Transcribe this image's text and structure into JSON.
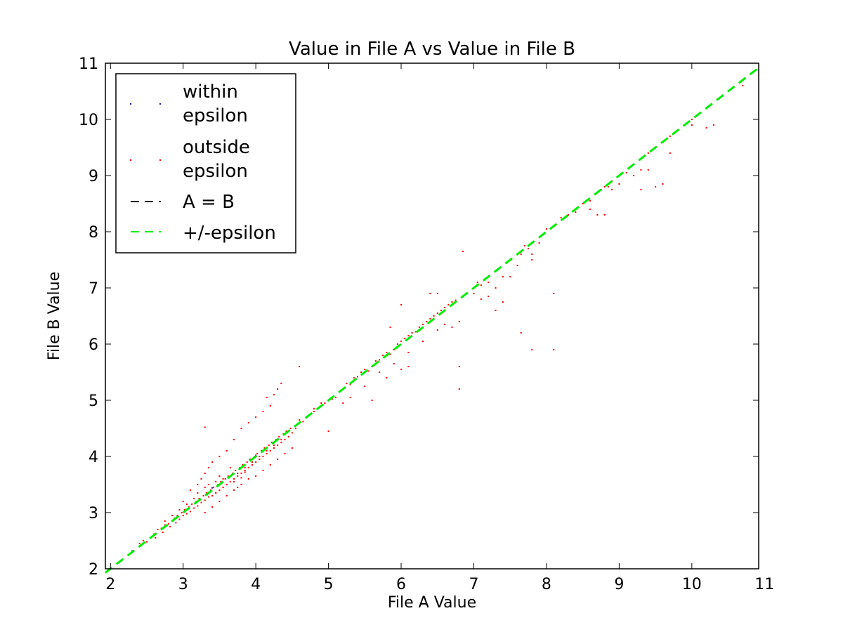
{
  "chart_data": {
    "type": "scatter",
    "title": "Value in File A vs Value in File B",
    "xlabel": "File A Value",
    "ylabel": "File B Value",
    "xlim": [
      1.93,
      10.92
    ],
    "ylim": [
      2,
      11
    ],
    "xticks": [
      2,
      3,
      4,
      5,
      6,
      7,
      8,
      9,
      10,
      11
    ],
    "yticks": [
      2,
      3,
      4,
      5,
      6,
      7,
      8,
      9,
      10,
      11
    ],
    "grid": false,
    "legend_position": "top-left",
    "series": [
      {
        "name": "within epsilon",
        "color": "#1a1aa8",
        "marker": "point",
        "points": [
          [
            2.3,
            2.32
          ],
          [
            3.4,
            3.44
          ],
          [
            4.0,
            4.02
          ]
        ]
      },
      {
        "name": "outside epsilon",
        "color": "#ff0000",
        "marker": "point",
        "points": [
          [
            2.4,
            2.45
          ],
          [
            2.45,
            2.5
          ],
          [
            2.5,
            2.48
          ],
          [
            2.55,
            2.55
          ],
          [
            2.6,
            2.62
          ],
          [
            2.62,
            2.55
          ],
          [
            2.65,
            2.7
          ],
          [
            2.7,
            2.72
          ],
          [
            2.72,
            2.65
          ],
          [
            2.75,
            2.78
          ],
          [
            2.8,
            2.8
          ],
          [
            2.82,
            2.75
          ],
          [
            2.85,
            2.85
          ],
          [
            2.88,
            2.9
          ],
          [
            2.9,
            2.82
          ],
          [
            2.92,
            2.95
          ],
          [
            2.95,
            2.88
          ],
          [
            2.98,
            3.0
          ],
          [
            3.0,
            2.95
          ],
          [
            3.02,
            3.05
          ],
          [
            3.05,
            2.98
          ],
          [
            3.08,
            3.1
          ],
          [
            3.1,
            3.02
          ],
          [
            3.12,
            3.15
          ],
          [
            3.15,
            3.08
          ],
          [
            3.18,
            3.2
          ],
          [
            3.2,
            3.12
          ],
          [
            3.22,
            3.25
          ],
          [
            3.25,
            3.18
          ],
          [
            3.28,
            3.3
          ],
          [
            3.3,
            3.22
          ],
          [
            3.32,
            3.35
          ],
          [
            3.35,
            3.28
          ],
          [
            3.38,
            3.4
          ],
          [
            3.4,
            3.3
          ],
          [
            3.42,
            3.45
          ],
          [
            3.45,
            3.35
          ],
          [
            3.48,
            3.5
          ],
          [
            3.5,
            3.4
          ],
          [
            3.52,
            3.55
          ],
          [
            3.55,
            3.45
          ],
          [
            3.58,
            3.6
          ],
          [
            3.6,
            3.5
          ],
          [
            3.62,
            3.65
          ],
          [
            3.65,
            3.55
          ],
          [
            3.68,
            3.7
          ],
          [
            3.7,
            3.6
          ],
          [
            3.72,
            3.75
          ],
          [
            3.75,
            3.65
          ],
          [
            3.78,
            3.8
          ],
          [
            3.8,
            3.7
          ],
          [
            3.82,
            3.85
          ],
          [
            3.85,
            3.75
          ],
          [
            3.88,
            3.9
          ],
          [
            3.9,
            3.8
          ],
          [
            3.92,
            3.95
          ],
          [
            3.95,
            3.85
          ],
          [
            3.98,
            4.0
          ],
          [
            4.0,
            3.9
          ],
          [
            4.02,
            4.05
          ],
          [
            4.05,
            3.95
          ],
          [
            4.08,
            4.1
          ],
          [
            4.1,
            4.0
          ],
          [
            4.12,
            4.15
          ],
          [
            4.15,
            4.05
          ],
          [
            4.18,
            4.2
          ],
          [
            4.2,
            4.1
          ],
          [
            4.22,
            4.25
          ],
          [
            4.25,
            4.15
          ],
          [
            4.28,
            4.3
          ],
          [
            4.3,
            4.2
          ],
          [
            4.32,
            4.35
          ],
          [
            4.35,
            4.25
          ],
          [
            4.38,
            4.4
          ],
          [
            4.4,
            4.3
          ],
          [
            4.42,
            4.45
          ],
          [
            4.45,
            4.35
          ],
          [
            4.48,
            4.5
          ],
          [
            4.5,
            4.42
          ],
          [
            4.55,
            4.55
          ],
          [
            4.6,
            4.6
          ],
          [
            4.65,
            4.62
          ],
          [
            4.7,
            4.7
          ],
          [
            4.75,
            4.75
          ],
          [
            4.8,
            4.8
          ],
          [
            4.85,
            4.85
          ],
          [
            4.9,
            4.9
          ],
          [
            4.95,
            4.95
          ],
          [
            5.0,
            5.0
          ],
          [
            5.05,
            5.02
          ],
          [
            3.0,
            3.2
          ],
          [
            3.1,
            3.4
          ],
          [
            3.2,
            3.5
          ],
          [
            3.25,
            3.6
          ],
          [
            3.3,
            3.7
          ],
          [
            3.35,
            3.8
          ],
          [
            3.4,
            3.9
          ],
          [
            3.5,
            4.0
          ],
          [
            3.6,
            4.1
          ],
          [
            3.7,
            4.3
          ],
          [
            3.8,
            4.5
          ],
          [
            3.9,
            4.6
          ],
          [
            4.0,
            4.7
          ],
          [
            4.1,
            4.8
          ],
          [
            4.2,
            4.9
          ],
          [
            3.3,
            4.52
          ],
          [
            4.15,
            5.05
          ],
          [
            4.25,
            5.1
          ],
          [
            4.3,
            5.2
          ],
          [
            4.35,
            5.3
          ],
          [
            3.3,
            3.0
          ],
          [
            3.4,
            3.1
          ],
          [
            3.5,
            3.2
          ],
          [
            3.6,
            3.3
          ],
          [
            3.7,
            3.4
          ],
          [
            3.8,
            3.5
          ],
          [
            3.9,
            3.6
          ],
          [
            4.0,
            3.65
          ],
          [
            4.1,
            3.75
          ],
          [
            4.2,
            3.85
          ],
          [
            4.3,
            3.95
          ],
          [
            4.4,
            4.05
          ],
          [
            4.5,
            4.15
          ],
          [
            3.6,
            3.5
          ],
          [
            3.7,
            3.55
          ],
          [
            3.75,
            3.45
          ],
          [
            3.8,
            3.62
          ],
          [
            3.85,
            3.72
          ],
          [
            3.55,
            3.6
          ],
          [
            3.65,
            3.8
          ],
          [
            3.45,
            3.55
          ],
          [
            3.5,
            3.65
          ],
          [
            3.3,
            3.45
          ],
          [
            3.2,
            3.35
          ],
          [
            3.15,
            3.25
          ],
          [
            3.05,
            3.15
          ],
          [
            2.95,
            3.05
          ],
          [
            2.85,
            2.95
          ],
          [
            2.75,
            2.85
          ],
          [
            3.35,
            3.5
          ],
          [
            3.45,
            3.35
          ],
          [
            3.55,
            3.45
          ],
          [
            3.65,
            3.55
          ],
          [
            3.75,
            3.7
          ],
          [
            3.85,
            3.8
          ],
          [
            3.95,
            3.9
          ],
          [
            4.05,
            4.0
          ],
          [
            4.15,
            4.1
          ],
          [
            4.25,
            4.2
          ],
          [
            4.35,
            4.3
          ],
          [
            5.1,
            5.05
          ],
          [
            5.2,
            5.2
          ],
          [
            5.25,
            5.3
          ],
          [
            5.3,
            5.28
          ],
          [
            5.35,
            5.4
          ],
          [
            5.4,
            5.42
          ],
          [
            5.45,
            5.5
          ],
          [
            5.5,
            5.55
          ],
          [
            5.55,
            5.52
          ],
          [
            5.6,
            5.6
          ],
          [
            5.65,
            5.7
          ],
          [
            5.7,
            5.72
          ],
          [
            5.75,
            5.8
          ],
          [
            5.8,
            5.85
          ],
          [
            5.85,
            5.82
          ],
          [
            5.9,
            5.9
          ],
          [
            5.95,
            6.0
          ],
          [
            6.0,
            6.05
          ],
          [
            6.05,
            6.1
          ],
          [
            6.1,
            6.15
          ],
          [
            6.15,
            6.2
          ],
          [
            6.2,
            6.22
          ],
          [
            6.25,
            6.3
          ],
          [
            6.3,
            6.35
          ],
          [
            6.35,
            6.4
          ],
          [
            6.4,
            6.45
          ],
          [
            6.45,
            6.5
          ],
          [
            6.5,
            6.55
          ],
          [
            6.55,
            6.6
          ],
          [
            6.6,
            6.65
          ],
          [
            6.65,
            6.7
          ],
          [
            6.7,
            6.75
          ],
          [
            6.75,
            6.78
          ],
          [
            5.2,
            4.95
          ],
          [
            5.3,
            5.05
          ],
          [
            5.5,
            5.25
          ],
          [
            5.7,
            5.5
          ],
          [
            5.9,
            5.65
          ],
          [
            6.1,
            5.85
          ],
          [
            6.3,
            6.05
          ],
          [
            6.5,
            6.25
          ],
          [
            6.6,
            6.35
          ],
          [
            6.7,
            6.3
          ],
          [
            6.8,
            6.4
          ],
          [
            5.6,
            5.0
          ],
          [
            5.8,
            5.4
          ],
          [
            6.0,
            5.55
          ],
          [
            6.1,
            5.6
          ],
          [
            5.85,
            6.3
          ],
          [
            6.0,
            6.7
          ],
          [
            6.4,
            6.9
          ],
          [
            6.5,
            6.9
          ],
          [
            6.8,
            5.6
          ],
          [
            6.8,
            5.2
          ],
          [
            7.0,
            7.0
          ],
          [
            7.05,
            7.1
          ],
          [
            7.1,
            7.05
          ],
          [
            7.2,
            7.1
          ],
          [
            7.3,
            7.0
          ],
          [
            7.4,
            7.2
          ],
          [
            7.0,
            6.9
          ],
          [
            7.1,
            6.8
          ],
          [
            7.2,
            6.85
          ],
          [
            7.3,
            6.6
          ],
          [
            7.4,
            6.75
          ],
          [
            7.5,
            7.2
          ],
          [
            7.6,
            7.4
          ],
          [
            7.65,
            7.6
          ],
          [
            7.7,
            7.75
          ],
          [
            7.75,
            7.7
          ],
          [
            7.8,
            7.6
          ],
          [
            7.9,
            7.8
          ],
          [
            7.8,
            7.5
          ],
          [
            7.65,
            6.2
          ],
          [
            7.8,
            5.9
          ],
          [
            8.1,
            5.9
          ],
          [
            8.1,
            6.9
          ],
          [
            6.85,
            7.65
          ],
          [
            8.0,
            8.05
          ],
          [
            8.1,
            8.1
          ],
          [
            8.2,
            8.25
          ],
          [
            8.3,
            8.3
          ],
          [
            8.4,
            8.35
          ],
          [
            8.5,
            8.5
          ],
          [
            8.6,
            8.55
          ],
          [
            8.7,
            8.7
          ],
          [
            8.75,
            8.75
          ],
          [
            8.8,
            8.8
          ],
          [
            8.9,
            8.9
          ],
          [
            8.6,
            8.4
          ],
          [
            8.7,
            8.3
          ],
          [
            8.8,
            8.3
          ],
          [
            8.85,
            8.8
          ],
          [
            8.9,
            8.75
          ],
          [
            9.0,
            8.85
          ],
          [
            9.1,
            9.05
          ],
          [
            9.2,
            9.0
          ],
          [
            9.3,
            9.1
          ],
          [
            9.4,
            9.4
          ],
          [
            9.5,
            9.5
          ],
          [
            9.6,
            9.6
          ],
          [
            9.7,
            9.7
          ],
          [
            9.3,
            8.75
          ],
          [
            9.5,
            8.8
          ],
          [
            9.6,
            8.85
          ],
          [
            9.7,
            9.4
          ],
          [
            9.4,
            9.1
          ],
          [
            10.0,
            10.0
          ],
          [
            10.1,
            10.1
          ],
          [
            10.0,
            9.9
          ],
          [
            10.2,
            9.85
          ],
          [
            10.3,
            9.9
          ],
          [
            10.7,
            10.6
          ],
          [
            5.0,
            4.45
          ],
          [
            4.6,
            5.6
          ],
          [
            4.7,
            4.7
          ],
          [
            4.8,
            4.85
          ],
          [
            4.9,
            4.95
          ],
          [
            4.55,
            4.5
          ],
          [
            4.6,
            4.65
          ]
        ]
      },
      {
        "name": "A = B",
        "color": "#000000",
        "line": "dashed",
        "points": [
          [
            1.93,
            1.93
          ],
          [
            10.92,
            10.92
          ]
        ]
      },
      {
        "name": "+/-epsilon",
        "color": "#00ee00",
        "line": "dashed",
        "points": [
          [
            1.93,
            1.93
          ],
          [
            10.92,
            10.92
          ]
        ]
      }
    ],
    "legend_lines": {
      "within_epsilon": [
        "within",
        "epsilon"
      ],
      "outside_epsilon": [
        "outside",
        "epsilon"
      ],
      "a_equals_b": "A = B",
      "plus_minus_epsilon": "+/-epsilon"
    }
  }
}
